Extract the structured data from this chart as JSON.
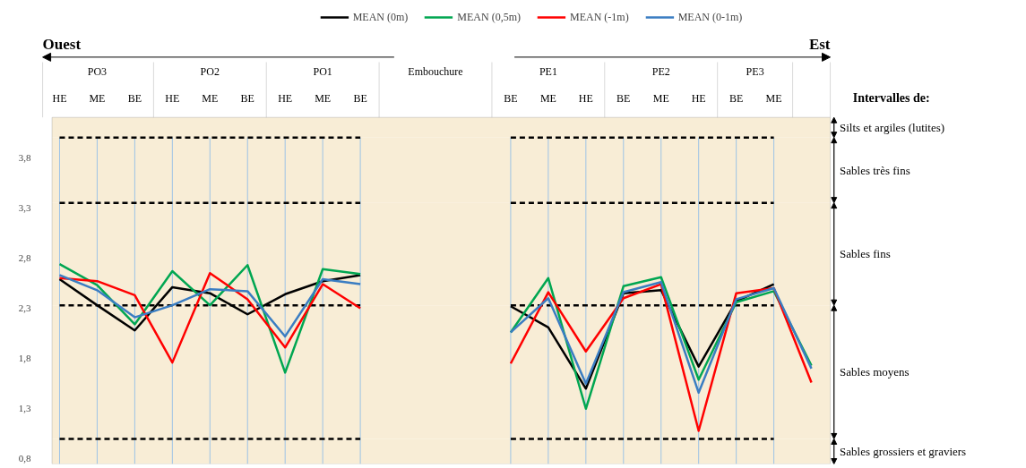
{
  "chart_data": {
    "type": "line",
    "categories": [
      "HE",
      "ME",
      "BE",
      "HE",
      "ME",
      "BE",
      "HE",
      "ME",
      "BE",
      null,
      null,
      null,
      "BE",
      "ME",
      "HE",
      "BE",
      "ME",
      "HE",
      "BE",
      "ME",
      null
    ],
    "series": [
      {
        "name": "MEAN (0m)",
        "color": "#000000",
        "values": [
          2.59,
          2.33,
          2.08,
          2.51,
          2.45,
          2.24,
          2.44,
          2.57,
          2.63,
          null,
          null,
          null,
          2.32,
          2.11,
          1.5,
          2.45,
          2.48,
          1.72,
          2.37,
          2.54,
          null
        ]
      },
      {
        "name": "MEAN (0,5m)",
        "color": "#00a651",
        "values": [
          2.74,
          2.53,
          2.14,
          2.67,
          2.33,
          2.73,
          1.66,
          2.69,
          2.64,
          null,
          null,
          null,
          2.06,
          2.6,
          1.3,
          2.52,
          2.61,
          1.59,
          2.36,
          2.47,
          1.73
        ]
      },
      {
        "name": "MEAN (-1m)",
        "color": "#ff0000",
        "values": [
          2.6,
          2.57,
          2.43,
          1.76,
          2.65,
          2.39,
          1.91,
          2.54,
          2.3,
          null,
          null,
          null,
          1.75,
          2.46,
          1.87,
          2.4,
          2.54,
          1.08,
          2.45,
          2.5,
          1.56
        ]
      },
      {
        "name": "MEAN (0-1m)",
        "color": "#3a7dc2",
        "values": [
          2.63,
          2.48,
          2.21,
          2.33,
          2.49,
          2.47,
          2.02,
          2.59,
          2.54,
          null,
          null,
          null,
          2.06,
          2.4,
          1.55,
          2.46,
          2.56,
          1.46,
          2.39,
          2.5,
          1.7
        ]
      }
    ],
    "ylim": [
      0.75,
      4.2
    ],
    "yticks": [
      {
        "value": 0.8,
        "label": "0,8"
      },
      {
        "value": 1.3,
        "label": "1,3"
      },
      {
        "value": 1.8,
        "label": "1,8"
      },
      {
        "value": 2.3,
        "label": "2,3"
      },
      {
        "value": 2.8,
        "label": "2,8"
      },
      {
        "value": 3.3,
        "label": "3,3"
      },
      {
        "value": 3.8,
        "label": "3,8"
      }
    ],
    "ref_lines": [
      {
        "axis": "y",
        "value": 4.0,
        "color": "#000000",
        "line_style": "dashed"
      },
      {
        "axis": "y",
        "value": 3.35,
        "color": "#000000",
        "line_style": "dashed"
      },
      {
        "axis": "y",
        "value": 2.33,
        "color": "#000000",
        "line_style": "dashed"
      },
      {
        "axis": "y",
        "value": 1.0,
        "color": "#000000",
        "line_style": "dashed"
      }
    ],
    "bands": [
      {
        "axis": "y",
        "from": 4.0,
        "to": 4.2,
        "label": "Silts et argiles (lutites)",
        "color": "#f8edd6"
      },
      {
        "axis": "y",
        "from": 3.35,
        "to": 4.0,
        "label": "Sables très fins",
        "color": "#f8edd6"
      },
      {
        "axis": "y",
        "from": 2.33,
        "to": 3.35,
        "label": "Sables fins",
        "color": "#f8edd6"
      },
      {
        "axis": "y",
        "from": 1.0,
        "to": 2.33,
        "label": "Sables moyens",
        "color": "#f8edd6"
      },
      {
        "axis": "y",
        "from": 0.75,
        "to": 1.0,
        "label": "Sables grossiers et graviers",
        "color": "#f8edd6"
      }
    ],
    "annotations": [
      "Ouest",
      "Est",
      "Intervalles de:",
      "PO3",
      "PO2",
      "PO1",
      "Embouchure",
      "PE1",
      "PE2",
      "PE3"
    ],
    "grid": "x",
    "legend": "top",
    "marker": "none",
    "line_style": "solid"
  }
}
